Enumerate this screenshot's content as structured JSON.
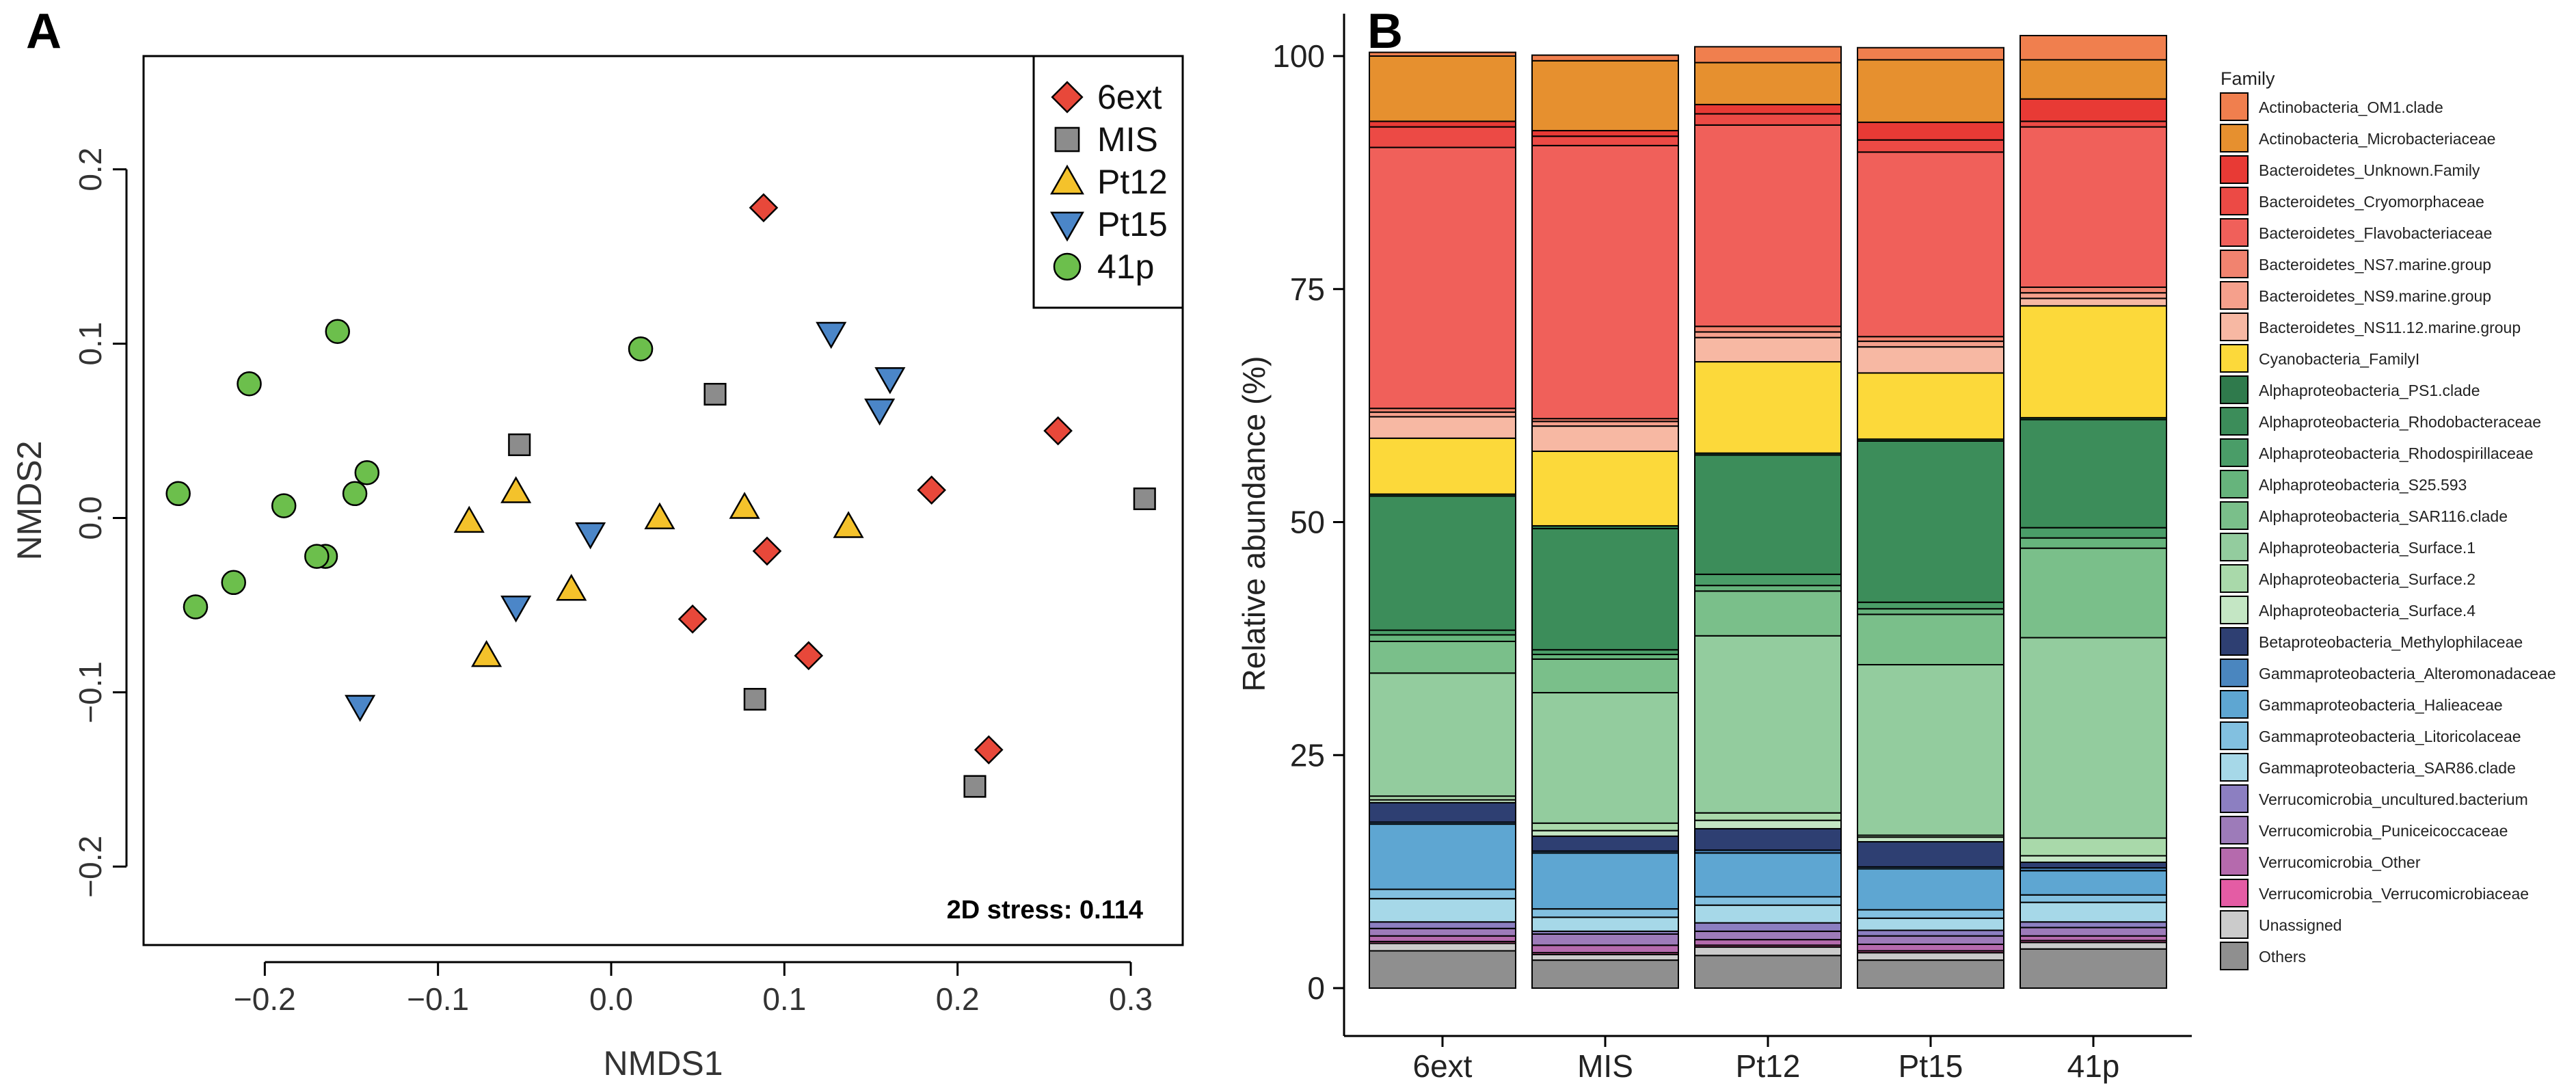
{
  "chart_data": [
    {
      "panel": "A",
      "type": "scatter",
      "xlabel": "NMDS1",
      "ylabel": "NMDS2",
      "xlim": [
        -0.27,
        0.33
      ],
      "ylim": [
        -0.245,
        0.265
      ],
      "xticks": [
        -0.2,
        -0.1,
        0.0,
        0.1,
        0.2,
        0.3
      ],
      "xtick_labels": [
        "−0.2",
        "−0.1",
        "0.0",
        "0.1",
        "0.2",
        "0.3"
      ],
      "yticks": [
        -0.2,
        -0.1,
        0.0,
        0.1,
        0.2
      ],
      "ytick_labels": [
        "−0.2",
        "−0.1",
        "0.0",
        "0.1",
        "0.2"
      ],
      "annotation": "2D stress: 0.114",
      "legend_position": "top-right",
      "series": [
        {
          "name": "6ext",
          "marker": "diamond",
          "color": "#e8483a",
          "points": [
            [
              0.088,
              0.178
            ],
            [
              0.258,
              0.05
            ],
            [
              0.185,
              0.016
            ],
            [
              0.09,
              -0.019
            ],
            [
              0.047,
              -0.058
            ],
            [
              0.114,
              -0.079
            ],
            [
              0.218,
              -0.133
            ]
          ]
        },
        {
          "name": "MIS",
          "marker": "square",
          "color": "#8c8c8c",
          "points": [
            [
              0.06,
              0.071
            ],
            [
              -0.053,
              0.042
            ],
            [
              0.308,
              0.011
            ],
            [
              0.083,
              -0.104
            ],
            [
              0.21,
              -0.154
            ]
          ]
        },
        {
          "name": "Pt12",
          "marker": "triangle-up",
          "color": "#f4c22b",
          "points": [
            [
              -0.082,
              -0.002
            ],
            [
              -0.055,
              0.015
            ],
            [
              0.028,
              0.0
            ],
            [
              0.077,
              0.006
            ],
            [
              0.137,
              -0.005
            ],
            [
              -0.023,
              -0.041
            ],
            [
              -0.072,
              -0.079
            ]
          ]
        },
        {
          "name": "Pt15",
          "marker": "triangle-down",
          "color": "#4b86c8",
          "points": [
            [
              0.127,
              0.106
            ],
            [
              0.161,
              0.08
            ],
            [
              0.155,
              0.062
            ],
            [
              -0.012,
              -0.009
            ],
            [
              -0.055,
              -0.051
            ],
            [
              -0.145,
              -0.108
            ]
          ]
        },
        {
          "name": "41p",
          "marker": "circle",
          "color": "#6cbf4c",
          "points": [
            [
              -0.158,
              0.107
            ],
            [
              -0.209,
              0.077
            ],
            [
              -0.25,
              0.014
            ],
            [
              -0.189,
              0.007
            ],
            [
              -0.148,
              0.014
            ],
            [
              -0.141,
              0.026
            ],
            [
              -0.165,
              -0.022
            ],
            [
              -0.17,
              -0.022
            ],
            [
              -0.218,
              -0.037
            ],
            [
              -0.24,
              -0.051
            ],
            [
              0.017,
              0.097
            ]
          ]
        }
      ]
    },
    {
      "panel": "B",
      "type": "bar",
      "stacked": true,
      "ylabel": "Relative abundance (%)",
      "ylim": [
        0,
        100
      ],
      "yticks": [
        0,
        25,
        50,
        75,
        100
      ],
      "categories": [
        "6ext",
        "MIS",
        "Pt12",
        "Pt15",
        "41p"
      ],
      "legend_title": "Family",
      "legend_position": "right",
      "series": [
        {
          "name": "Others",
          "color": "#8f8f8f",
          "values": [
            4.0,
            3.0,
            3.5,
            3.0,
            4.2
          ]
        },
        {
          "name": "Unassigned",
          "color": "#cbcbcb",
          "values": [
            0.8,
            0.6,
            0.9,
            0.8,
            0.7
          ]
        },
        {
          "name": "Verrucomicrobia_Verrucomicrobiaceae",
          "color": "#e45ca4",
          "values": [
            0.2,
            0.2,
            0.2,
            0.2,
            0.2
          ]
        },
        {
          "name": "Verrucomicrobia_Other",
          "color": "#b56aad",
          "values": [
            0.6,
            0.8,
            0.6,
            0.7,
            0.5
          ]
        },
        {
          "name": "Verrucomicrobia_Puniceicoccaceae",
          "color": "#9d7bb9",
          "values": [
            0.8,
            1.2,
            0.9,
            0.9,
            0.9
          ]
        },
        {
          "name": "Verrucomicrobia_uncultured.bacterium",
          "color": "#8c7fc1",
          "values": [
            0.7,
            0.3,
            0.9,
            0.6,
            0.6
          ]
        },
        {
          "name": "Gammaproteobacteria_SAR86.clade",
          "color": "#a6d8e8",
          "values": [
            2.5,
            1.5,
            1.9,
            1.3,
            2.1
          ]
        },
        {
          "name": "Gammaproteobacteria_Litoricolaceae",
          "color": "#82c0e0",
          "values": [
            1.0,
            0.9,
            0.9,
            0.9,
            0.8
          ]
        },
        {
          "name": "Gammaproteobacteria_Halieaceae",
          "color": "#5ea6d2",
          "values": [
            7.0,
            6.0,
            4.7,
            4.4,
            2.6
          ]
        },
        {
          "name": "Gammaproteobacteria_Alteromonadaceae",
          "color": "#4a86bf",
          "values": [
            0.2,
            0.2,
            0.3,
            0.2,
            0.3
          ]
        },
        {
          "name": "Betaproteobacteria_Methylophilaceae",
          "color": "#2e3f72",
          "values": [
            2.1,
            1.6,
            2.3,
            2.7,
            0.6
          ]
        },
        {
          "name": "Alphaproteobacteria_Surface.4",
          "color": "#c4e6c4",
          "values": [
            0.3,
            0.6,
            0.9,
            0.5,
            0.7
          ]
        },
        {
          "name": "Alphaproteobacteria_Surface.2",
          "color": "#a9d9aa",
          "values": [
            0.4,
            0.8,
            0.8,
            0.2,
            1.9
          ]
        },
        {
          "name": "Alphaproteobacteria_Surface.1",
          "color": "#93cc9e",
          "values": [
            13.2,
            14.0,
            19.0,
            18.3,
            21.5
          ]
        },
        {
          "name": "Alphaproteobacteria_SAR116.clade",
          "color": "#7abf8a",
          "values": [
            3.4,
            3.6,
            4.8,
            5.4,
            9.6
          ]
        },
        {
          "name": "Alphaproteobacteria_S25.593",
          "color": "#66b47c",
          "values": [
            0.7,
            0.5,
            0.6,
            0.6,
            1.1
          ]
        },
        {
          "name": "Alphaproteobacteria_Rhodospirillaceae",
          "color": "#4a9d68",
          "values": [
            0.5,
            0.5,
            1.2,
            0.7,
            1.1
          ]
        },
        {
          "name": "Alphaproteobacteria_Rhodobacteraceae",
          "color": "#3c8d5a",
          "values": [
            14.4,
            13.0,
            12.8,
            17.3,
            11.6
          ]
        },
        {
          "name": "Alphaproteobacteria_PS1.clade",
          "color": "#2f7a4c",
          "values": [
            0.2,
            0.3,
            0.2,
            0.2,
            0.2
          ]
        },
        {
          "name": "Cyanobacteria_FamilyI",
          "color": "#fcd93a",
          "values": [
            6.0,
            8.0,
            9.8,
            7.1,
            12.0
          ]
        },
        {
          "name": "Bacteroidetes_NS11.12.marine.group",
          "color": "#f7b8a3",
          "values": [
            2.3,
            2.7,
            2.6,
            2.8,
            0.8
          ]
        },
        {
          "name": "Bacteroidetes_NS9.marine.group",
          "color": "#f5a08c",
          "values": [
            0.5,
            0.5,
            0.6,
            0.6,
            0.6
          ]
        },
        {
          "name": "Bacteroidetes_NS7.marine.group",
          "color": "#f1836f",
          "values": [
            0.4,
            0.3,
            0.6,
            0.5,
            0.6
          ]
        },
        {
          "name": "Bacteroidetes_Flavobacteriaceae",
          "color": "#f0605a",
          "values": [
            28.0,
            29.3,
            21.6,
            19.8,
            17.2
          ]
        },
        {
          "name": "Bacteroidetes_Cryomorphaceae",
          "color": "#ec4a45",
          "values": [
            2.2,
            1.0,
            1.2,
            1.3,
            0.6
          ]
        },
        {
          "name": "Bacteroidetes_Unknown.Family",
          "color": "#e83a35",
          "values": [
            0.6,
            0.6,
            1.0,
            1.9,
            2.4
          ]
        },
        {
          "name": "Actinobacteria_Microbacteriaceae",
          "color": "#e6902f",
          "values": [
            7.0,
            7.5,
            4.5,
            6.7,
            4.2
          ]
        },
        {
          "name": "Actinobacteria_OM1.clade",
          "color": "#f07f4e",
          "values": [
            0.4,
            0.6,
            1.7,
            1.3,
            2.6
          ]
        }
      ]
    }
  ],
  "panel_labels": {
    "a": "A",
    "b": "B"
  }
}
